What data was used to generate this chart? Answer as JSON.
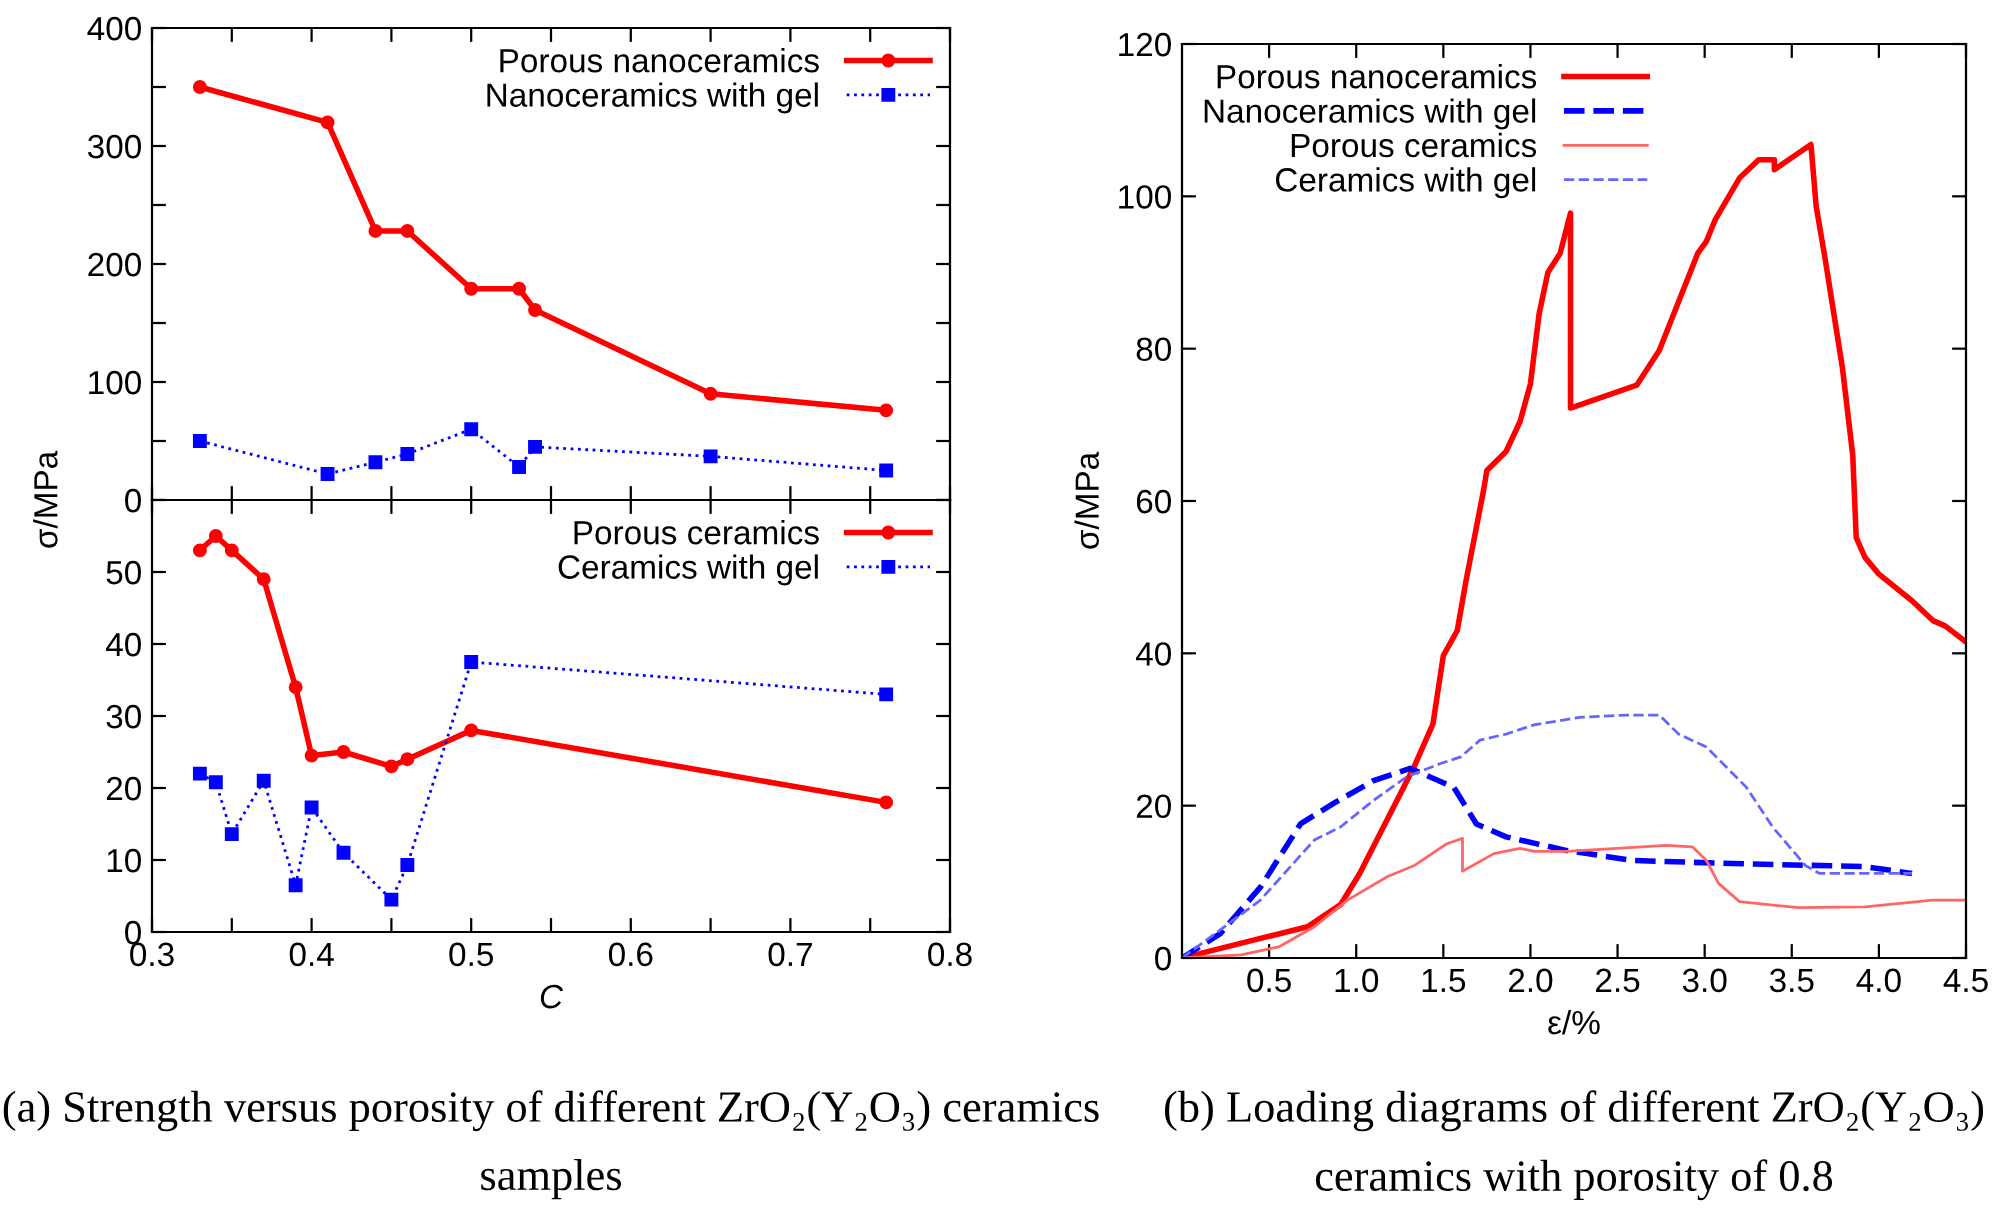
{
  "chart_data": [
    {
      "type": "line",
      "ylabel": "σ/MPa",
      "xlim": [
        0.3,
        0.8
      ],
      "xticks": [
        {
          "value": 0.3,
          "label": null
        },
        {
          "value": 0.35,
          "label": null
        },
        {
          "value": 0.4,
          "label": null
        },
        {
          "value": 0.45,
          "label": null
        },
        {
          "value": 0.5,
          "label": null
        },
        {
          "value": 0.55,
          "label": null
        },
        {
          "value": 0.6,
          "label": null
        },
        {
          "value": 0.65,
          "label": null
        },
        {
          "value": 0.7,
          "label": null
        },
        {
          "value": 0.75,
          "label": null
        },
        {
          "value": 0.8,
          "label": null
        }
      ],
      "ylim": [
        0,
        400
      ],
      "yticks": [
        0,
        {
          "value": 50,
          "label": null
        },
        100,
        {
          "value": 150,
          "label": null
        },
        200,
        {
          "value": 250,
          "label": null
        },
        300,
        {
          "value": 350,
          "label": null
        },
        400
      ],
      "tick_labels": "y",
      "grid": false,
      "legend": "top right",
      "series": [
        {
          "name": "Porous nanoceramics",
          "color": "#ff0000",
          "marker": "circle",
          "line_style": "solid",
          "x": [
            0.33,
            0.41,
            0.44,
            0.46,
            0.5,
            0.53,
            0.54,
            0.65,
            0.76
          ],
          "values": [
            350,
            320,
            228,
            228,
            179,
            179,
            161,
            90,
            76
          ]
        },
        {
          "name": "Nanoceramics with gel",
          "color": "#0000ff",
          "marker": "square",
          "line_style": "dotted",
          "x": [
            0.33,
            0.41,
            0.44,
            0.46,
            0.5,
            0.53,
            0.54,
            0.65,
            0.76
          ],
          "values": [
            50,
            22,
            32,
            39,
            60,
            28,
            45,
            37,
            25
          ]
        }
      ]
    },
    {
      "type": "line",
      "xlabel": "C",
      "xlim": [
        0.3,
        0.8
      ],
      "xticks": [
        0.3,
        {
          "value": 0.35,
          "label": null
        },
        0.4,
        {
          "value": 0.45,
          "label": null
        },
        0.5,
        {
          "value": 0.55,
          "label": null
        },
        0.6,
        {
          "value": 0.65,
          "label": null
        },
        0.7,
        {
          "value": 0.75,
          "label": null
        },
        0.8
      ],
      "ylim": [
        0,
        60
      ],
      "yticks": [
        0,
        10,
        20,
        30,
        40,
        50,
        {
          "value": 60,
          "label": null
        }
      ],
      "grid": false,
      "legend": "top right",
      "annotations": [
        "(a) Strength versus porosity of different ZrO₂(Y₂O₃) ceramics samples"
      ],
      "series": [
        {
          "name": "Porous ceramics",
          "color": "#ff0000",
          "marker": "circle",
          "line_style": "solid",
          "x": [
            0.33,
            0.34,
            0.35,
            0.37,
            0.39,
            0.4,
            0.42,
            0.45,
            0.46,
            0.5,
            0.76
          ],
          "values": [
            53,
            55,
            53,
            49,
            34,
            24.5,
            25,
            23,
            24,
            28,
            18
          ]
        },
        {
          "name": "Ceramics with gel",
          "color": "#0000ff",
          "marker": "square",
          "line_style": "dotted",
          "x": [
            0.33,
            0.34,
            0.35,
            0.37,
            0.39,
            0.4,
            0.42,
            0.45,
            0.46,
            0.5,
            0.76
          ],
          "values": [
            22,
            20.8,
            13.6,
            21,
            6.5,
            17.3,
            11,
            4.5,
            9.3,
            37.5,
            33
          ]
        }
      ]
    },
    {
      "type": "line",
      "xlabel": "ε/%",
      "ylabel": "σ/MPa",
      "xlim": [
        0,
        4.5
      ],
      "xticks": [
        0.5,
        {
          "value": 1,
          "label": "1.0"
        },
        1.5,
        {
          "value": 2,
          "label": "2.0"
        },
        2.5,
        {
          "value": 3,
          "label": "3.0"
        },
        3.5,
        {
          "value": 4,
          "label": "4.0"
        },
        4.5
      ],
      "ylim": [
        0,
        120
      ],
      "yticks": [
        0,
        20,
        40,
        60,
        80,
        100,
        120
      ],
      "grid": false,
      "legend": "top left",
      "marker": "none",
      "annotations": [
        "(b) Loading diagrams of different ZrO₂(Y₂O₃) ceramics with porosity of 0.8"
      ],
      "series": [
        {
          "name": "Porous nanoceramics",
          "color": "#ff0000",
          "line_style": "solid",
          "x": [
            0,
            0.49,
            0.72,
            0.91,
            1.02,
            1.33,
            1.44,
            1.5,
            1.58,
            1.63,
            1.73,
            1.75,
            1.86,
            1.94,
            2.0,
            2.05,
            2.1,
            2.17,
            2.23,
            2.23,
            2.61,
            2.74,
            2.96,
            3.01,
            3.06,
            3.2,
            3.31,
            3.4,
            3.4,
            3.61,
            3.64,
            3.69,
            3.79,
            3.85,
            3.87,
            3.92,
            4.0,
            4.19,
            4.31,
            4.38,
            4.5
          ],
          "values": [
            0,
            2.8,
            4.1,
            7,
            11.1,
            25,
            30.7,
            39.7,
            43,
            49.5,
            61.3,
            64,
            66.5,
            70.4,
            75.4,
            84.6,
            90,
            92.5,
            97.8,
            72.2,
            75.2,
            79.8,
            92.5,
            94.1,
            96.9,
            102.4,
            104.8,
            104.8,
            103.5,
            106.8,
            98.7,
            92,
            77.6,
            66,
            55.2,
            52.6,
            50.4,
            46.9,
            44.3,
            43.6,
            41.5
          ]
        },
        {
          "name": "Nanoceramics with gel",
          "color": "#0000ff",
          "line_style": "dashed",
          "x": [
            0,
            0.22,
            0.45,
            0.68,
            0.87,
            1.1,
            1.31,
            1.56,
            1.69,
            1.86,
            2.21,
            2.59,
            3.16,
            3.92,
            4.19
          ],
          "values": [
            0,
            3.2,
            9.3,
            17.6,
            20.3,
            23.3,
            24.9,
            22.4,
            17.6,
            15.9,
            14.1,
            12.8,
            12.4,
            12,
            11.1
          ]
        },
        {
          "name": "Porous ceramics",
          "color": "#ff6666",
          "line_style": "solid",
          "x": [
            0,
            0.34,
            0.56,
            0.76,
            0.95,
            1.18,
            1.33,
            1.52,
            1.61,
            1.61,
            1.79,
            1.94,
            2.02,
            2.21,
            2.78,
            2.93,
            3.01,
            3.08,
            3.2,
            3.54,
            3.92,
            4.31,
            4.5
          ],
          "values": [
            0,
            0.4,
            1.5,
            4.1,
            7.6,
            10.7,
            12.1,
            15,
            15.7,
            11.4,
            13.7,
            14.4,
            14,
            14,
            14.8,
            14.6,
            12.8,
            9.8,
            7.4,
            6.6,
            6.7,
            7.6,
            7.6
          ]
        },
        {
          "name": "Ceramics with gel",
          "color": "#6666ff",
          "line_style": "dashed",
          "x": [
            0,
            0.22,
            0.45,
            0.76,
            0.91,
            1.1,
            1.29,
            1.48,
            1.6,
            1.71,
            1.86,
            2.02,
            2.28,
            2.55,
            2.74,
            2.85,
            3.01,
            3.24,
            3.39,
            3.58,
            3.66,
            4.19
          ],
          "values": [
            0,
            3.7,
            7.6,
            15.5,
            17.2,
            20.7,
            23.8,
            25.5,
            26.4,
            28.6,
            29.4,
            30.6,
            31.6,
            31.9,
            31.9,
            29.4,
            27.7,
            22.4,
            17.2,
            12.1,
            11.1,
            11.1
          ]
        }
      ]
    }
  ]
}
